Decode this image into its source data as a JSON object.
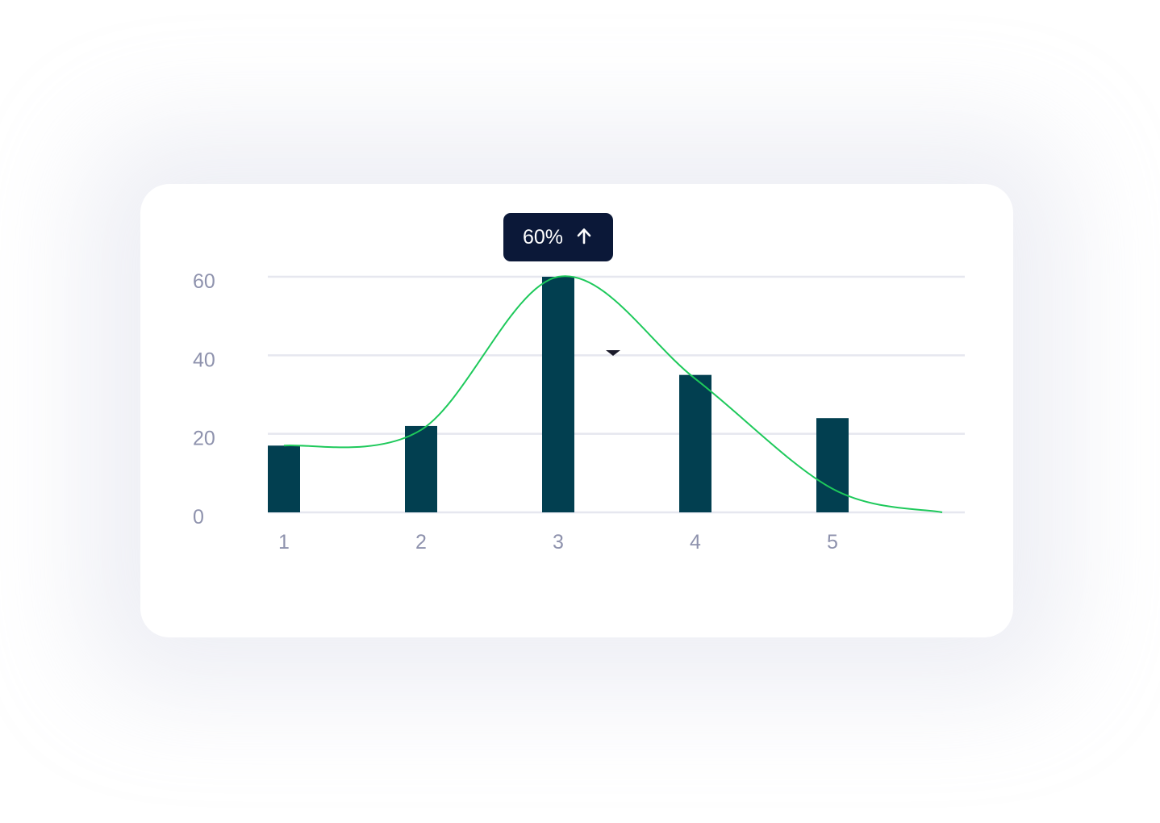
{
  "colors": {
    "bar": "#023f50",
    "line": "#1ec95b",
    "grid": "#e6e7ef",
    "tick_text": "#8e92ad",
    "tooltip_bg": "#0b1838",
    "tooltip_text": "#ffffff",
    "marker": "#1a1a2a"
  },
  "tooltip": {
    "value": "60%",
    "icon": "arrow-up-icon"
  },
  "chart_data": {
    "type": "bar",
    "categories": [
      "1",
      "2",
      "3",
      "4",
      "5"
    ],
    "values": [
      17,
      22,
      60,
      35,
      24
    ],
    "trend_line": {
      "type": "line",
      "smooth": true,
      "x": [
        1,
        2,
        3,
        4,
        5,
        5.8
      ],
      "y": [
        17,
        21,
        60,
        34,
        6,
        0
      ]
    },
    "ylim": [
      0,
      60
    ],
    "yticks": [
      "0",
      "20",
      "40",
      "60"
    ],
    "grid": true,
    "legend": "none"
  }
}
